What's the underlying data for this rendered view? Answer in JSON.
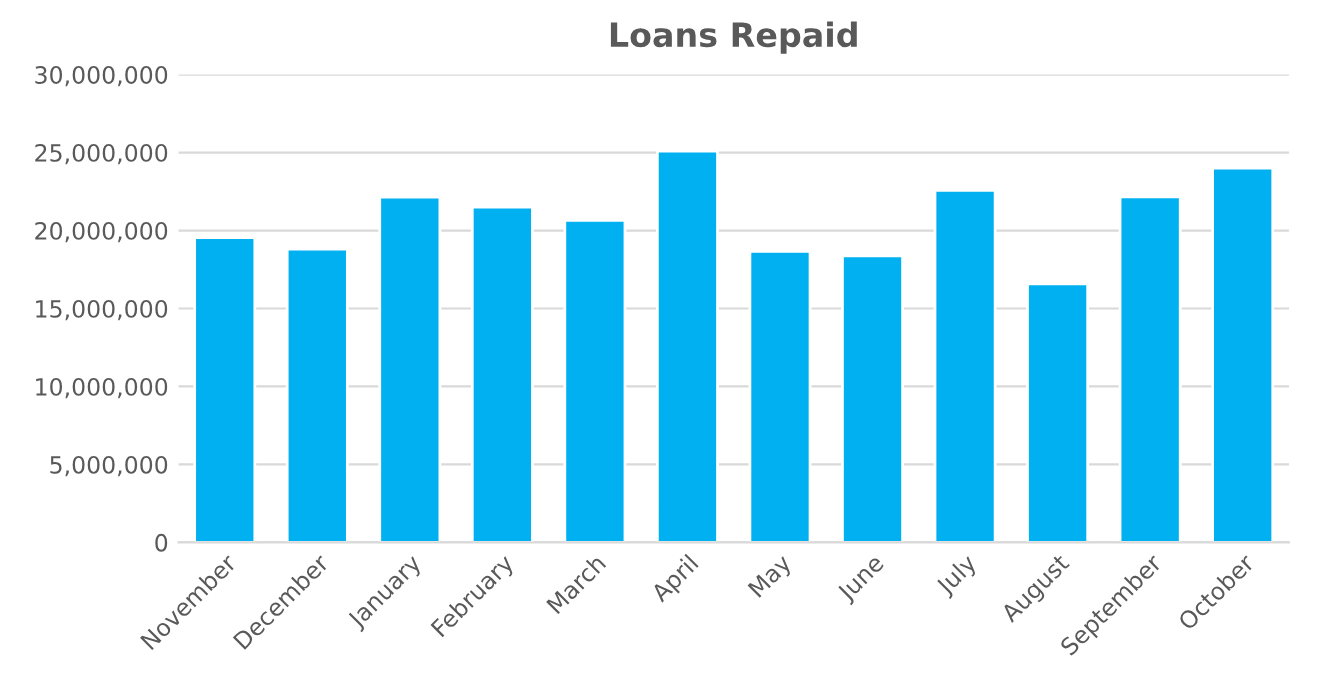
{
  "chart_data": {
    "type": "bar",
    "title": "Loans Repaid",
    "categories": [
      "November",
      "December",
      "January",
      "February",
      "March",
      "April",
      "May",
      "June",
      "July",
      "August",
      "September",
      "October"
    ],
    "values": [
      19550000,
      18800000,
      22150000,
      21500000,
      20650000,
      25100000,
      18670000,
      18380000,
      22580000,
      16580000,
      22160000,
      24000000
    ],
    "color": "#00b0f0",
    "ylim": [
      0,
      30000000
    ],
    "yticks": [
      {
        "value": 0,
        "label": "0"
      },
      {
        "value": 5000000,
        "label": "5,000,000"
      },
      {
        "value": 10000000,
        "label": "10,000,000"
      },
      {
        "value": 15000000,
        "label": "15,000,000"
      },
      {
        "value": 20000000,
        "label": "20,000,000"
      },
      {
        "value": 25000000,
        "label": "25,000,000"
      },
      {
        "value": 30000000,
        "label": "30,000,000"
      }
    ],
    "grid": "y",
    "legend": false
  }
}
